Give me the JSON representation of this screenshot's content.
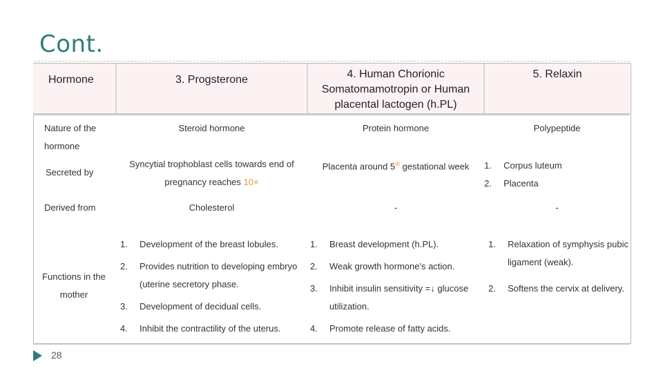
{
  "title": "Cont.",
  "table": {
    "headers": {
      "hormone": "Hormone",
      "progesterone": "3. Progsterone",
      "hcs": "4. Human Chorionic Somatomamotropin or Human placental lactogen (h.PL)",
      "relaxin": "5. Relaxin"
    },
    "nature": {
      "label": "Nature of the hormone",
      "progesterone": "Steroid hormone",
      "hcs": "Protein hormone",
      "relaxin": "Polypeptide"
    },
    "secreted": {
      "label": "Secreted by",
      "progesterone_a": "Syncytial trophoblast cells towards end of",
      "progesterone_b": "pregnancy reaches ",
      "progesterone_c": "10×",
      "hcs_a": "Placenta around 5",
      "hcs_sup": "th",
      "hcs_b": " gestational week",
      "relaxin": [
        {
          "num": "1.",
          "text": "Corpus luteum"
        },
        {
          "num": "2.",
          "text": "Placenta"
        }
      ]
    },
    "derived": {
      "label": "Derived from",
      "progesterone": "Cholesterol",
      "hcs": "-",
      "relaxin": "-"
    },
    "functions": {
      "label": "Functions in the mother",
      "progesterone": [
        {
          "num": "1.",
          "text": "Development of the breast lobules."
        },
        {
          "num": "2.",
          "text": "Provides nutrition to developing embryo (uterine secretory phase."
        },
        {
          "num": "3.",
          "text": "Development of decidual cells."
        },
        {
          "num": "4.",
          "text": "Inhibit the contractility of the uterus."
        }
      ],
      "hcs": [
        {
          "num": "1.",
          "text": "Breast development (h.PL)."
        },
        {
          "num": "2.",
          "text": "Weak growth hormone's action."
        },
        {
          "num": "3.",
          "text": "Inhibit insulin sensitivity =↓ glucose utilization."
        },
        {
          "num": "4.",
          "text": "Promote release of fatty acids."
        }
      ],
      "relaxin": [
        {
          "num": "1.",
          "text": "Relaxation of symphysis pubic ligament (weak)."
        },
        {
          "num": "2.",
          "text": "Softens the cervix at delivery."
        }
      ]
    }
  },
  "footer": {
    "page_number": "28",
    "icon": "slide-arrow-icon"
  },
  "colors": {
    "title": "#2e7d7a",
    "header_bg": "#fdf2f3",
    "accent": "#e69b3a"
  }
}
